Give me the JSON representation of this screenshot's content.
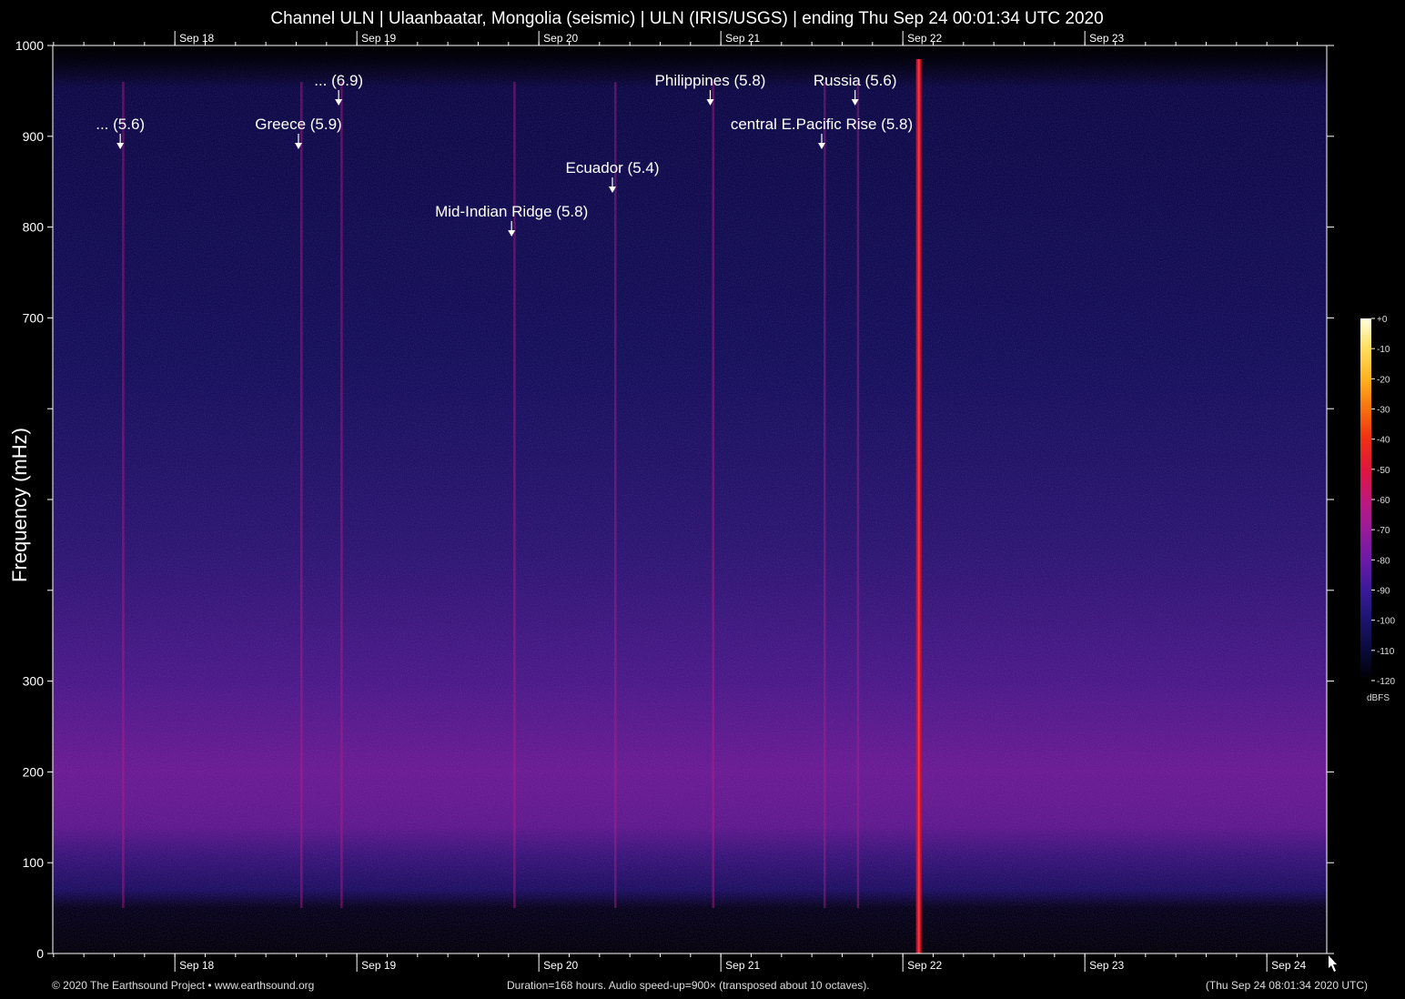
{
  "header": {
    "title": "Channel ULN | Ulaanbaatar, Mongolia (seismic) | ULN (IRIS/USGS) | ending Thu Sep 24 00:01:34 UTC 2020"
  },
  "footer": {
    "copyright": "© 2020 The Earthsound Project • www.earthsound.org",
    "duration": "Duration=168 hours. Audio speed-up=900× (transposed about 10 octaves).",
    "local_time": "(Thu Sep 24 08:01:34 2020 UTC)"
  },
  "colorbar": {
    "unit": "dBFS",
    "ticks": [
      "+0",
      "-10",
      "-20",
      "-30",
      "-40",
      "-50",
      "-60",
      "-70",
      "-80",
      "-90",
      "-100",
      "-110",
      "-120"
    ],
    "colors": [
      "#000000",
      "#0a0a3a",
      "#1d1470",
      "#3a1a9a",
      "#6a1aa8",
      "#9a1a9a",
      "#c0187a",
      "#e01440",
      "#f03010",
      "#f87010",
      "#ffb020",
      "#ffe060",
      "#ffffe0"
    ]
  },
  "chart_data": {
    "type": "heatmap",
    "title": "Channel ULN | Ulaanbaatar, Mongolia (seismic) | ULN (IRIS/USGS) | ending Thu Sep 24 00:01:34 UTC 2020",
    "ylabel": "Frequency (mHz)",
    "xlabel": "",
    "ylim": [
      0,
      1000
    ],
    "xlim_hours": [
      0,
      168
    ],
    "y_ticks": [
      {
        "value": 0,
        "label": "0"
      },
      {
        "value": 100,
        "label": "100"
      },
      {
        "value": 200,
        "label": "200"
      },
      {
        "value": 300,
        "label": "300"
      },
      {
        "value": 400,
        "label": ""
      },
      {
        "value": 500,
        "label": ""
      },
      {
        "value": 600,
        "label": ""
      },
      {
        "value": 700,
        "label": "700"
      },
      {
        "value": 800,
        "label": "800"
      },
      {
        "value": 900,
        "label": "900"
      },
      {
        "value": 1000,
        "label": "1000"
      }
    ],
    "x_day_ticks": [
      {
        "label": "Sep 18",
        "hour": 16.1
      },
      {
        "label": "Sep 19",
        "hour": 40.1
      },
      {
        "label": "Sep 20",
        "hour": 64.1
      },
      {
        "label": "Sep 21",
        "hour": 88.1
      },
      {
        "label": "Sep 22",
        "hour": 112.1
      },
      {
        "label": "Sep 23",
        "hour": 136.1
      },
      {
        "label": "Sep 24",
        "hour": 160.1
      }
    ],
    "events": [
      {
        "label": "... (5.6)",
        "hour": 8.9,
        "row": 2
      },
      {
        "label": "Greece (5.9)",
        "hour": 32.4,
        "row": 2
      },
      {
        "label": "... (6.9)",
        "hour": 37.7,
        "row": 1
      },
      {
        "label": "Mid-Indian Ridge (5.8)",
        "hour": 60.5,
        "row": 4
      },
      {
        "label": "Ecuador (5.4)",
        "hour": 73.8,
        "row": 3
      },
      {
        "label": "Philippines (5.8)",
        "hour": 86.7,
        "row": 1
      },
      {
        "label": "central E.Pacific Rise (5.8)",
        "hour": 101.4,
        "row": 2
      },
      {
        "label": "Russia (5.6)",
        "hour": 105.8,
        "row": 1
      }
    ],
    "strong_signal_hour": 114.2,
    "color_range_dbfs": [
      -120,
      0
    ]
  }
}
